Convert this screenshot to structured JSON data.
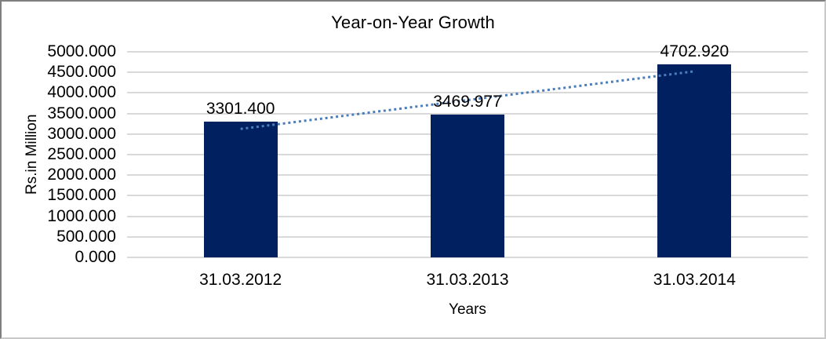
{
  "chart_data": {
    "type": "bar",
    "title": "Year-on-Year Growth",
    "categories": [
      "31.03.2012",
      "31.03.2013",
      "31.03.2014"
    ],
    "values": [
      3301.4,
      3469.977,
      4702.92
    ],
    "data_labels": [
      "3301.400",
      "3469.977",
      "4702.920"
    ],
    "xlabel": "Years",
    "ylabel": "Rs.in Million",
    "ylim": [
      0,
      5000
    ],
    "ytick_step": 500,
    "ytick_labels": [
      "0.000",
      "500.000",
      "1000.000",
      "1500.000",
      "2000.000",
      "2500.000",
      "3000.000",
      "3500.000",
      "4000.000",
      "4500.000",
      "5000.000"
    ],
    "grid": true,
    "legend": "none",
    "trendline": {
      "type": "linear",
      "style": "dotted",
      "color": "#4a7ebb"
    },
    "colors": {
      "bar": "#002060",
      "gridline": "#d9d9d9",
      "text": "#000000",
      "background": "#ffffff",
      "frame_border_dark": "#7f7f7f",
      "frame_border_light": "#c9c9c9"
    }
  }
}
